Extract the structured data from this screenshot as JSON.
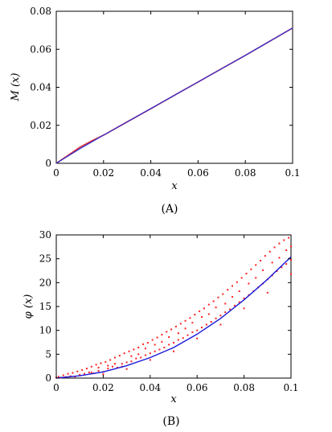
{
  "chart_data": [
    {
      "type": "line",
      "caption": "(A)",
      "xlabel": "x",
      "ylabel": "M (x)",
      "xlim": [
        0,
        0.1
      ],
      "ylim": [
        0,
        0.08
      ],
      "xticks": [
        "0",
        "0.02",
        "0.04",
        "0.06",
        "0.08",
        "0.1"
      ],
      "yticks": [
        "0",
        "0.02",
        "0.04",
        "0.06",
        "0.08"
      ],
      "grid": false,
      "series": [
        {
          "color": "#e0303a",
          "style": "solid",
          "x": [
            0,
            0.005,
            0.01,
            0.015,
            0.02,
            0.03,
            0.04,
            0.05,
            0.06,
            0.07,
            0.08,
            0.09,
            0.1
          ],
          "y": [
            0,
            0.0042,
            0.0085,
            0.0118,
            0.0148,
            0.0218,
            0.0287,
            0.0358,
            0.0428,
            0.0498,
            0.0568,
            0.064,
            0.0712
          ]
        },
        {
          "color": "#2a2ad0",
          "style": "solid",
          "x": [
            0,
            0.01,
            0.02,
            0.03,
            0.04,
            0.05,
            0.06,
            0.07,
            0.08,
            0.09,
            0.1
          ],
          "y": [
            0,
            0.0077,
            0.0148,
            0.0218,
            0.0288,
            0.0358,
            0.0428,
            0.0498,
            0.0568,
            0.064,
            0.0712
          ]
        }
      ]
    },
    {
      "type": "scatter",
      "caption": "(B)",
      "xlabel": "x",
      "ylabel": "φ (x)",
      "xlim": [
        0,
        0.1
      ],
      "ylim": [
        0,
        30
      ],
      "xticks": [
        "0",
        "0.02",
        "0.04",
        "0.06",
        "0.08",
        "0.1"
      ],
      "yticks": [
        "0",
        "5",
        "10",
        "15",
        "20",
        "25",
        "30"
      ],
      "grid": false,
      "scatter_color": "#ff2020",
      "scatter": [
        [
          0.0,
          0.1
        ],
        [
          0.001,
          0.3
        ],
        [
          0.002,
          0.1
        ],
        [
          0.003,
          0.6
        ],
        [
          0.004,
          0.2
        ],
        [
          0.005,
          0.9
        ],
        [
          0.006,
          0.4
        ],
        [
          0.007,
          1.1
        ],
        [
          0.008,
          0.3
        ],
        [
          0.009,
          1.4
        ],
        [
          0.01,
          0.7
        ],
        [
          0.011,
          1.7
        ],
        [
          0.012,
          0.9
        ],
        [
          0.013,
          2.0
        ],
        [
          0.014,
          1.2
        ],
        [
          0.015,
          2.4
        ],
        [
          0.016,
          1.0
        ],
        [
          0.017,
          2.8
        ],
        [
          0.018,
          1.5
        ],
        [
          0.019,
          3.1
        ],
        [
          0.02,
          1.3
        ],
        [
          0.021,
          3.4
        ],
        [
          0.022,
          2.0
        ],
        [
          0.023,
          3.8
        ],
        [
          0.024,
          2.4
        ],
        [
          0.025,
          4.3
        ],
        [
          0.026,
          2.2
        ],
        [
          0.027,
          4.7
        ],
        [
          0.028,
          3.0
        ],
        [
          0.029,
          5.2
        ],
        [
          0.03,
          3.3
        ],
        [
          0.031,
          5.6
        ],
        [
          0.032,
          3.5
        ],
        [
          0.033,
          6.0
        ],
        [
          0.034,
          4.1
        ],
        [
          0.035,
          6.4
        ],
        [
          0.036,
          4.3
        ],
        [
          0.037,
          7.1
        ],
        [
          0.038,
          4.8
        ],
        [
          0.039,
          7.4
        ],
        [
          0.04,
          5.2
        ],
        [
          0.041,
          8.0
        ],
        [
          0.042,
          5.6
        ],
        [
          0.043,
          8.5
        ],
        [
          0.044,
          6.0
        ],
        [
          0.045,
          9.1
        ],
        [
          0.046,
          6.4
        ],
        [
          0.047,
          9.7
        ],
        [
          0.048,
          7.0
        ],
        [
          0.049,
          10.2
        ],
        [
          0.05,
          7.4
        ],
        [
          0.051,
          10.8
        ],
        [
          0.052,
          8.0
        ],
        [
          0.053,
          11.4
        ],
        [
          0.054,
          8.4
        ],
        [
          0.055,
          12.0
        ],
        [
          0.056,
          9.0
        ],
        [
          0.057,
          12.6
        ],
        [
          0.058,
          9.6
        ],
        [
          0.059,
          13.3
        ],
        [
          0.06,
          10.0
        ],
        [
          0.061,
          14.0
        ],
        [
          0.062,
          10.6
        ],
        [
          0.063,
          14.6
        ],
        [
          0.064,
          11.2
        ],
        [
          0.065,
          15.4
        ],
        [
          0.066,
          11.8
        ],
        [
          0.067,
          16.1
        ],
        [
          0.068,
          12.5
        ],
        [
          0.069,
          16.9
        ],
        [
          0.07,
          13.1
        ],
        [
          0.071,
          17.6
        ],
        [
          0.072,
          13.8
        ],
        [
          0.073,
          18.5
        ],
        [
          0.074,
          14.4
        ],
        [
          0.075,
          19.3
        ],
        [
          0.076,
          15.2
        ],
        [
          0.077,
          20.1
        ],
        [
          0.078,
          15.9
        ],
        [
          0.079,
          21.0
        ],
        [
          0.08,
          16.7
        ],
        [
          0.081,
          21.9
        ],
        [
          0.082,
          17.4
        ],
        [
          0.083,
          22.8
        ],
        [
          0.084,
          18.2
        ],
        [
          0.085,
          23.7
        ],
        [
          0.086,
          19.0
        ],
        [
          0.087,
          24.6
        ],
        [
          0.088,
          19.8
        ],
        [
          0.089,
          25.6
        ],
        [
          0.09,
          20.7
        ],
        [
          0.091,
          26.5
        ],
        [
          0.092,
          21.5
        ],
        [
          0.093,
          27.4
        ],
        [
          0.094,
          22.4
        ],
        [
          0.095,
          28.2
        ],
        [
          0.096,
          23.2
        ],
        [
          0.097,
          28.9
        ],
        [
          0.098,
          23.9
        ],
        [
          0.099,
          29.4
        ],
        [
          0.1,
          24.8
        ],
        [
          0.015,
          1.2
        ],
        [
          0.018,
          2.2
        ],
        [
          0.022,
          2.6
        ],
        [
          0.025,
          3.0
        ],
        [
          0.028,
          2.4
        ],
        [
          0.032,
          4.6
        ],
        [
          0.035,
          5.0
        ],
        [
          0.038,
          6.2
        ],
        [
          0.042,
          7.0
        ],
        [
          0.045,
          7.6
        ],
        [
          0.048,
          8.6
        ],
        [
          0.052,
          9.4
        ],
        [
          0.055,
          10.4
        ],
        [
          0.058,
          11.6
        ],
        [
          0.062,
          12.8
        ],
        [
          0.065,
          13.4
        ],
        [
          0.068,
          14.8
        ],
        [
          0.072,
          15.6
        ],
        [
          0.075,
          17.0
        ],
        [
          0.078,
          18.2
        ],
        [
          0.082,
          19.8
        ],
        [
          0.085,
          21.0
        ],
        [
          0.088,
          22.6
        ],
        [
          0.092,
          24.2
        ],
        [
          0.095,
          25.2
        ],
        [
          0.098,
          26.8
        ],
        [
          0.1,
          27.6
        ],
        [
          0.02,
          0.8
        ],
        [
          0.03,
          1.9
        ],
        [
          0.04,
          3.8
        ],
        [
          0.05,
          5.6
        ],
        [
          0.06,
          8.3
        ],
        [
          0.07,
          11.2
        ],
        [
          0.08,
          14.6
        ],
        [
          0.09,
          17.9
        ],
        [
          0.1,
          21.8
        ]
      ],
      "fit": {
        "color": "#1a1ad8",
        "x": [
          0,
          0.01,
          0.02,
          0.03,
          0.04,
          0.05,
          0.06,
          0.07,
          0.08,
          0.09,
          0.1
        ],
        "y": [
          0,
          0.5,
          1.3,
          2.6,
          4.3,
          6.4,
          9.2,
          12.5,
          16.4,
          20.7,
          25.4
        ]
      }
    }
  ]
}
